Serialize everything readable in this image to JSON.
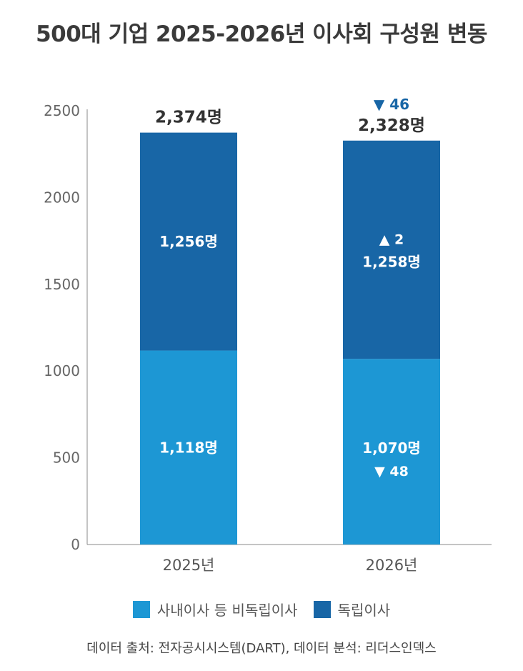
{
  "chart_data": {
    "type": "bar",
    "stacked": true,
    "title": "500대 기업 2025-2026년 이사회 구성원 변동",
    "categories": [
      "2025년",
      "2026년"
    ],
    "series": [
      {
        "name": "사내이사 등 비독립이사",
        "color": "#1d97d4",
        "values": [
          1118,
          1070
        ],
        "value_labels": [
          "1,118명",
          "1,070명"
        ],
        "change_labels": [
          "",
          "▼ 48"
        ]
      },
      {
        "name": "독립이사",
        "color": "#1866a6",
        "values": [
          1256,
          1258
        ],
        "value_labels": [
          "1,256명",
          "1,258명"
        ],
        "change_labels": [
          "",
          "▲ 2"
        ]
      }
    ],
    "totals": [
      2374,
      2328
    ],
    "total_labels": [
      "2,374명",
      "2,328명"
    ],
    "total_change_labels": [
      "",
      "▼ 46"
    ],
    "total_change_color": "#1866a6",
    "y_ticks": [
      "0",
      "500",
      "1000",
      "1500",
      "2000",
      "2500"
    ],
    "ylim": [
      0,
      2500
    ],
    "grid": false,
    "legend_position": "bottom"
  },
  "source": "데이터 출처: 전자공시시스템(DART), 데이터 분석: 리더스인덱스"
}
